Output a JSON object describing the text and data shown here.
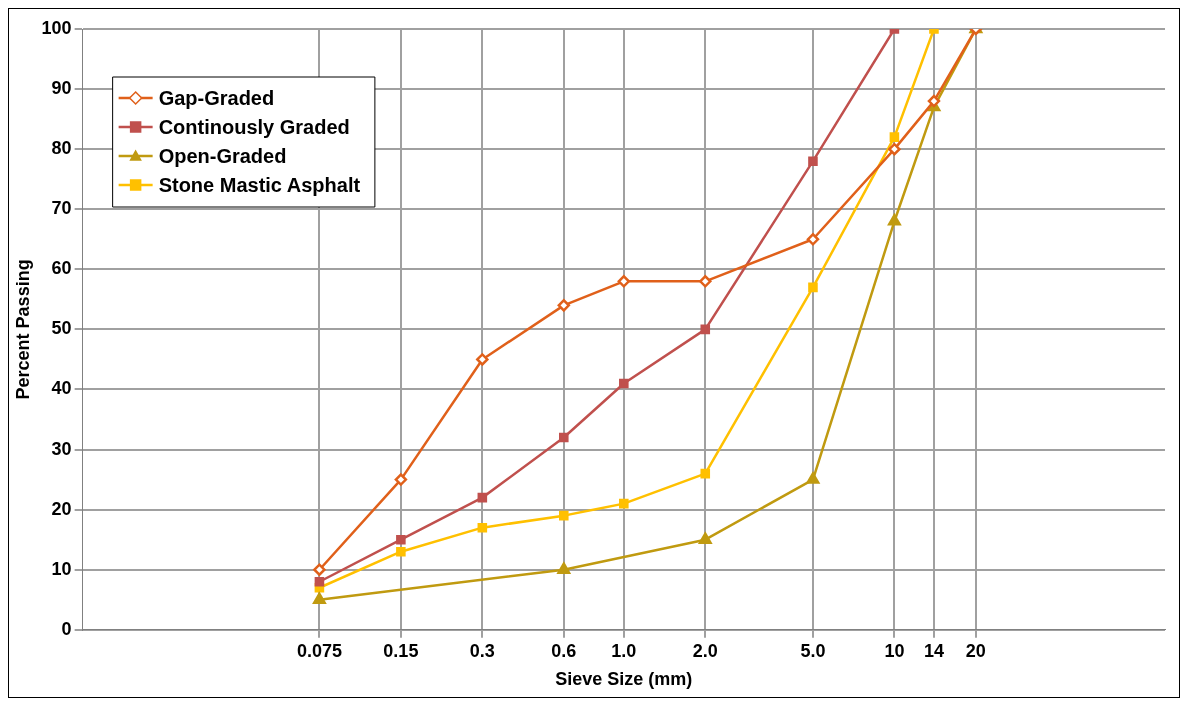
{
  "chart_data": {
    "type": "line",
    "xlabel": "Sieve Size (mm)",
    "ylabel": "Percent Passing",
    "log": "x",
    "xlim": [
      0.01,
      100
    ],
    "xticks": [
      0.075,
      0.15,
      0.3,
      0.6,
      {
        "value": 1,
        "label": "1.0"
      },
      {
        "value": 2,
        "label": "2.0"
      },
      {
        "value": 5,
        "label": "5.0"
      },
      10,
      14,
      20
    ],
    "ylim": [
      0,
      100
    ],
    "yticks": [
      0,
      10,
      20,
      30,
      40,
      50,
      60,
      70,
      80,
      90,
      100
    ],
    "grid": true,
    "legend": "top left",
    "series": [
      {
        "name": "Gap-Graded",
        "color": "#e0601a",
        "marker": "diamond",
        "x": [
          0.075,
          0.15,
          0.3,
          0.6,
          1,
          2,
          5,
          10,
          14,
          20
        ],
        "values": [
          10,
          25,
          45,
          54,
          58,
          58,
          65,
          80,
          88,
          100
        ]
      },
      {
        "name": "Continously Graded",
        "color": "#c0504d",
        "marker": "square",
        "x": [
          0.075,
          0.15,
          0.3,
          0.6,
          1,
          2,
          5,
          10
        ],
        "values": [
          8,
          15,
          22,
          32,
          41,
          50,
          78,
          100
        ]
      },
      {
        "name": "Open-Graded",
        "color": "#c09a10",
        "marker": "triangle",
        "x": [
          0.075,
          0.6,
          2,
          5,
          10,
          14,
          20
        ],
        "values": [
          5,
          10,
          15,
          25,
          68,
          87,
          100
        ]
      },
      {
        "name": "Stone Mastic Asphalt",
        "color": "#ffc000",
        "marker": "square",
        "x": [
          0.075,
          0.15,
          0.3,
          0.6,
          1,
          2,
          5,
          10,
          14
        ],
        "values": [
          7,
          13,
          17,
          19,
          21,
          26,
          57,
          82,
          100
        ]
      }
    ]
  }
}
